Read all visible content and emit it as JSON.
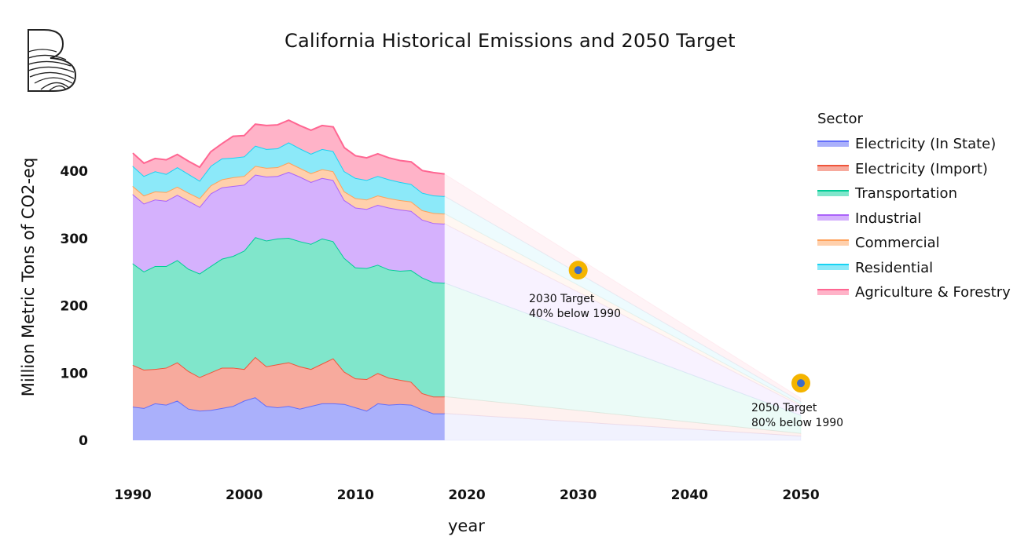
{
  "chart_data": {
    "type": "area",
    "title": "California Historical Emissions and 2050 Target",
    "xlabel": "year",
    "ylabel": "Million Metric Tons of CO2-eq",
    "xlim": [
      1990,
      2050
    ],
    "ylim": [
      0,
      450
    ],
    "x_ticks": [
      "1990",
      "2000",
      "2010",
      "2020",
      "2030",
      "2040",
      "2050"
    ],
    "y_ticks": [
      "0",
      "100",
      "200",
      "300",
      "400"
    ],
    "legend_title": "Sector",
    "legend_position": "right",
    "stacked": true,
    "x": [
      1990,
      1991,
      1992,
      1993,
      1994,
      1995,
      1996,
      1997,
      1998,
      1999,
      2000,
      2001,
      2002,
      2003,
      2004,
      2005,
      2006,
      2007,
      2008,
      2009,
      2010,
      2011,
      2012,
      2013,
      2014,
      2015,
      2016,
      2017,
      2018
    ],
    "series": [
      {
        "name": "Electricity (In State)",
        "color": "#636efa",
        "fill": "#aab0fb",
        "values": [
          50,
          48,
          55,
          53,
          59,
          47,
          44,
          45,
          48,
          51,
          59,
          64,
          51,
          49,
          51,
          47,
          51,
          55,
          55,
          54,
          49,
          44,
          55,
          53,
          54,
          53,
          46,
          40,
          40
        ]
      },
      {
        "name": "Electricity (Import)",
        "color": "#ef553b",
        "fill": "#f7aa9d",
        "values": [
          62,
          57,
          51,
          55,
          57,
          56,
          50,
          56,
          60,
          57,
          47,
          60,
          59,
          64,
          65,
          63,
          55,
          59,
          67,
          48,
          43,
          47,
          45,
          40,
          36,
          34,
          24,
          25,
          25
        ]
      },
      {
        "name": "Transportation",
        "color": "#00cc96",
        "fill": "#80e6cb",
        "values": [
          151,
          146,
          153,
          151,
          152,
          152,
          154,
          158,
          162,
          166,
          176,
          178,
          187,
          187,
          185,
          186,
          186,
          186,
          174,
          169,
          165,
          165,
          161,
          161,
          162,
          166,
          172,
          170,
          169
        ]
      },
      {
        "name": "Industrial",
        "color": "#ab63fa",
        "fill": "#d5b1fd",
        "values": [
          103,
          101,
          99,
          97,
          97,
          101,
          99,
          108,
          106,
          104,
          98,
          93,
          95,
          93,
          98,
          96,
          92,
          90,
          91,
          86,
          89,
          88,
          89,
          92,
          91,
          88,
          86,
          88,
          88
        ]
      },
      {
        "name": "Commercial",
        "color": "#ffa15a",
        "fill": "#ffd0ac",
        "values": [
          12,
          12,
          12,
          13,
          12,
          12,
          13,
          12,
          12,
          13,
          13,
          13,
          13,
          13,
          14,
          13,
          13,
          13,
          13,
          13,
          14,
          14,
          14,
          14,
          14,
          14,
          14,
          15,
          15
        ]
      },
      {
        "name": "Residential",
        "color": "#19d3f3",
        "fill": "#8ce9f9",
        "values": [
          30,
          29,
          30,
          27,
          29,
          28,
          26,
          29,
          31,
          29,
          29,
          30,
          28,
          28,
          30,
          29,
          29,
          30,
          30,
          30,
          30,
          29,
          29,
          28,
          27,
          26,
          26,
          26,
          26
        ]
      },
      {
        "name": "Agriculture & Forestry",
        "color": "#ff6692",
        "fill": "#ffb3c8",
        "values": [
          19,
          19,
          19,
          21,
          19,
          19,
          20,
          21,
          22,
          32,
          31,
          32,
          35,
          35,
          33,
          34,
          35,
          35,
          36,
          35,
          33,
          33,
          33,
          32,
          32,
          33,
          33,
          34,
          33
        ]
      }
    ],
    "targets": [
      {
        "year": 2030,
        "value": 253,
        "label_line1": "2030 Target",
        "label_line2": "40% below 1990"
      },
      {
        "year": 2050,
        "value": 85,
        "label_line1": "2050 Target",
        "label_line2": "80% below 1990"
      }
    ],
    "target_marker_color": "#f4b400",
    "target_dot_color": "#3d6cc8"
  }
}
